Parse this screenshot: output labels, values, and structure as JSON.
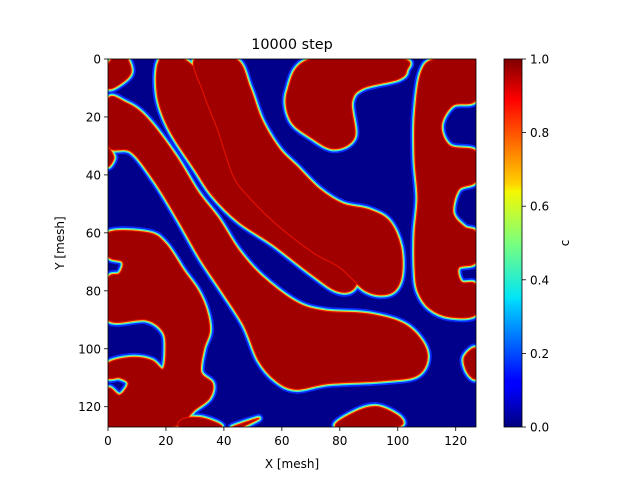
{
  "chart_data": {
    "type": "heatmap",
    "title": "10000 step",
    "xlabel": "X [mesh]",
    "ylabel": "Y [mesh]",
    "xlim": [
      0,
      127
    ],
    "ylim": [
      127,
      0
    ],
    "x_ticks": [
      0,
      20,
      40,
      60,
      80,
      100,
      120
    ],
    "y_ticks": [
      0,
      20,
      40,
      60,
      80,
      100,
      120
    ],
    "colorbar": {
      "label": "c",
      "range": [
        0.0,
        1.0
      ],
      "ticks": [
        "0.0",
        "0.2",
        "0.4",
        "0.6",
        "0.8",
        "1.0"
      ],
      "colormap": "jet"
    },
    "field": {
      "description": "binary phase field c(x,y) on 128x128 mesh; values ~1 inside red domains, ~0 elsewhere",
      "background_value": 0.0,
      "domain_value": 1.0,
      "domains": [
        [
          [
            0,
            2
          ],
          [
            5,
            -2
          ],
          [
            8,
            4
          ],
          [
            5,
            8
          ],
          [
            0,
            10
          ]
        ],
        [
          [
            0,
            14
          ],
          [
            6,
            15
          ],
          [
            13,
            20
          ],
          [
            23,
            33
          ],
          [
            31,
            46
          ],
          [
            38,
            55
          ],
          [
            45,
            66
          ],
          [
            53,
            75
          ],
          [
            65,
            84
          ],
          [
            75,
            87
          ],
          [
            90,
            88
          ],
          [
            103,
            92
          ],
          [
            110,
            101
          ],
          [
            107,
            109
          ],
          [
            95,
            111
          ],
          [
            76,
            112
          ],
          [
            65,
            114
          ],
          [
            58,
            111
          ],
          [
            52,
            104
          ],
          [
            47,
            92
          ],
          [
            40,
            81
          ],
          [
            32,
            69
          ],
          [
            24,
            55
          ],
          [
            16,
            42
          ],
          [
            8,
            32
          ],
          [
            0,
            30
          ]
        ],
        [
          [
            18,
            0
          ],
          [
            26,
            0
          ],
          [
            33,
            7
          ],
          [
            40,
            20
          ],
          [
            48,
            32
          ],
          [
            56,
            42
          ],
          [
            65,
            51
          ],
          [
            73,
            54
          ],
          [
            81,
            54
          ],
          [
            86,
            60
          ],
          [
            87,
            70
          ],
          [
            85,
            79
          ],
          [
            79,
            80
          ],
          [
            70,
            74
          ],
          [
            57,
            64
          ],
          [
            45,
            56
          ],
          [
            36,
            47
          ],
          [
            30,
            38
          ],
          [
            21,
            24
          ],
          [
            17,
            12
          ]
        ],
        [
          [
            30,
            0
          ],
          [
            44,
            0
          ],
          [
            49,
            10
          ],
          [
            53,
            21
          ],
          [
            59,
            31
          ],
          [
            65,
            37
          ],
          [
            73,
            45
          ],
          [
            81,
            50
          ],
          [
            90,
            52
          ],
          [
            97,
            56
          ],
          [
            101,
            65
          ],
          [
            101,
            76
          ],
          [
            97,
            81
          ],
          [
            89,
            80
          ],
          [
            80,
            72
          ],
          [
            71,
            67
          ],
          [
            58,
            57
          ],
          [
            48,
            47
          ],
          [
            43,
            40
          ],
          [
            38,
            25
          ],
          [
            33,
            12
          ]
        ],
        [
          [
            70,
            0
          ],
          [
            101,
            0
          ],
          [
            103,
            4
          ],
          [
            100,
            7
          ],
          [
            88,
            10
          ],
          [
            84,
            15
          ],
          [
            85,
            27
          ],
          [
            78,
            31
          ],
          [
            70,
            27
          ],
          [
            63,
            21
          ],
          [
            62,
            11
          ]
        ],
        [
          [
            113,
            0
          ],
          [
            127,
            0
          ],
          [
            127,
            14
          ],
          [
            119,
            16
          ],
          [
            115,
            23
          ],
          [
            118,
            30
          ],
          [
            127,
            32
          ],
          [
            127,
            42
          ],
          [
            121,
            45
          ],
          [
            119,
            53
          ],
          [
            123,
            58
          ],
          [
            127,
            60
          ],
          [
            127,
            70
          ],
          [
            121,
            72
          ],
          [
            122,
            77
          ],
          [
            127,
            78
          ],
          [
            127,
            88
          ],
          [
            118,
            89
          ],
          [
            111,
            86
          ],
          [
            107,
            80
          ],
          [
            106,
            72
          ],
          [
            106,
            60
          ],
          [
            107,
            48
          ],
          [
            106,
            35
          ],
          [
            106,
            20
          ],
          [
            108,
            5
          ]
        ],
        [
          [
            0,
            60
          ],
          [
            14,
            60
          ],
          [
            20,
            64
          ],
          [
            26,
            73
          ],
          [
            31,
            80
          ],
          [
            34,
            87
          ],
          [
            35,
            94
          ],
          [
            33,
            100
          ],
          [
            32,
            108
          ],
          [
            36,
            112
          ],
          [
            35,
            117
          ],
          [
            30,
            121
          ],
          [
            22,
            127
          ],
          [
            0,
            127
          ],
          [
            0,
            114
          ],
          [
            4,
            116
          ],
          [
            7,
            112
          ],
          [
            4,
            110
          ],
          [
            0,
            110
          ],
          [
            0,
            105
          ],
          [
            8,
            103
          ],
          [
            15,
            104
          ],
          [
            19,
            107
          ],
          [
            20,
            100
          ],
          [
            19,
            94
          ],
          [
            13,
            90
          ],
          [
            0,
            90
          ],
          [
            0,
            76
          ],
          [
            4,
            74
          ],
          [
            5,
            70
          ],
          [
            0,
            68
          ]
        ],
        [
          [
            43,
            127
          ],
          [
            52,
            124
          ],
          [
            46,
            127
          ]
        ],
        [
          [
            25,
            127
          ],
          [
            26,
            124
          ],
          [
            33,
            124
          ],
          [
            39,
            127
          ]
        ],
        [
          [
            79,
            127
          ],
          [
            85,
            122
          ],
          [
            93,
            120
          ],
          [
            101,
            124
          ],
          [
            99,
            127
          ]
        ],
        [
          [
            127,
            100
          ],
          [
            123,
            103
          ],
          [
            124,
            108
          ],
          [
            127,
            110
          ]
        ],
        [
          [
            0,
            31
          ],
          [
            2,
            34
          ],
          [
            0,
            37
          ]
        ]
      ]
    }
  }
}
